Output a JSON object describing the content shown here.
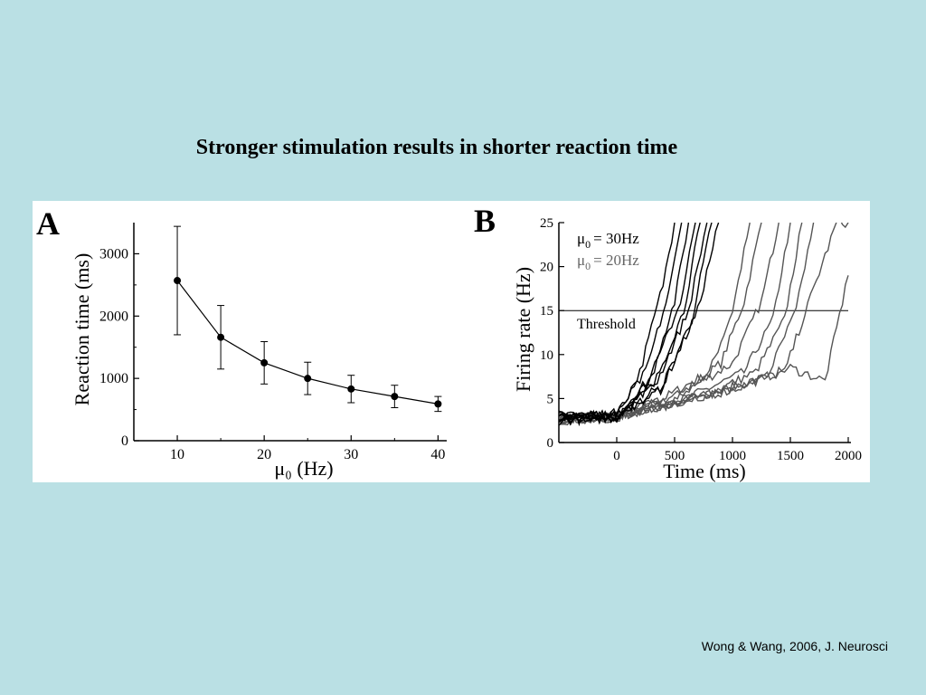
{
  "slide": {
    "title": "Stronger stimulation results in shorter reaction time",
    "citation": "Wong & Wang, 2006, J. Neurosci"
  },
  "colors": {
    "background": "#bae0e4",
    "panel": "#ffffff",
    "series_30": "#000000",
    "series_20": "#555555",
    "threshold": "#000000"
  },
  "chart_data": [
    {
      "panel_label": "A",
      "type": "line",
      "xlabel": "μ₀ (Hz)",
      "ylabel": "Reaction time (ms)",
      "x": [
        10,
        15,
        20,
        25,
        30,
        35,
        40
      ],
      "series": [
        {
          "values": [
            2570,
            1660,
            1250,
            1000,
            830,
            710,
            590
          ],
          "error": [
            870,
            510,
            340,
            260,
            220,
            180,
            120
          ]
        }
      ],
      "xlim": [
        5,
        41
      ],
      "ylim": [
        0,
        3500
      ],
      "xticks": [
        "10",
        "20",
        "30",
        "40"
      ],
      "yticks": [
        "0",
        "1000",
        "2000",
        "3000"
      ],
      "grid": false
    },
    {
      "panel_label": "B",
      "type": "line",
      "xlabel": "Time (ms)",
      "ylabel": "Firing rate (Hz)",
      "xlim": [
        -500,
        2000
      ],
      "ylim": [
        0,
        25
      ],
      "xticks": [
        "0",
        "500",
        "1000",
        "1500",
        "2000"
      ],
      "yticks": [
        "0",
        "5",
        "10",
        "15",
        "20",
        "25"
      ],
      "threshold": {
        "value": 15,
        "label": "Threshold"
      },
      "legend": {
        "placement": "top-left",
        "entries": [
          {
            "symbol": "μ",
            "sub": "0",
            "text": "= 30Hz"
          },
          {
            "symbol": "μ",
            "sub": "0",
            "text": "= 20Hz"
          }
        ]
      },
      "series": [
        {
          "group": "30Hz",
          "x": [
            -500,
            0,
            200,
            400,
            500
          ],
          "y": [
            2.7,
            3,
            8,
            18,
            25
          ]
        },
        {
          "group": "30Hz",
          "x": [
            -500,
            0,
            250,
            450,
            560
          ],
          "y": [
            3,
            3.2,
            8,
            17,
            25
          ]
        },
        {
          "group": "30Hz",
          "x": [
            -500,
            0,
            280,
            500,
            620
          ],
          "y": [
            2.5,
            2.8,
            7,
            16,
            25
          ]
        },
        {
          "group": "30Hz",
          "x": [
            -500,
            0,
            300,
            550,
            680
          ],
          "y": [
            3.1,
            3,
            7.5,
            16,
            25
          ]
        },
        {
          "group": "30Hz",
          "x": [
            -500,
            0,
            320,
            580,
            720
          ],
          "y": [
            2.8,
            2.9,
            6.5,
            15,
            25
          ]
        },
        {
          "group": "30Hz",
          "x": [
            -500,
            0,
            350,
            620,
            780
          ],
          "y": [
            3,
            3.3,
            7,
            15,
            25
          ]
        },
        {
          "group": "30Hz",
          "x": [
            -500,
            0,
            380,
            650,
            820
          ],
          "y": [
            2.6,
            3,
            6,
            14,
            25
          ]
        },
        {
          "group": "30Hz",
          "x": [
            -500,
            0,
            400,
            700,
            880
          ],
          "y": [
            3.2,
            3.1,
            6.5,
            15,
            25
          ]
        },
        {
          "group": "20Hz",
          "x": [
            -500,
            0,
            400,
            800,
            1000,
            1150
          ],
          "y": [
            2.6,
            3,
            5,
            8,
            15,
            25
          ]
        },
        {
          "group": "20Hz",
          "x": [
            -500,
            0,
            500,
            900,
            1100,
            1250
          ],
          "y": [
            2.5,
            2.8,
            5,
            9,
            16,
            25
          ]
        },
        {
          "group": "20Hz",
          "x": [
            -500,
            0,
            550,
            1000,
            1250,
            1400
          ],
          "y": [
            2.7,
            3,
            5.5,
            9,
            16,
            25
          ]
        },
        {
          "group": "20Hz",
          "x": [
            -500,
            0,
            600,
            1100,
            1350,
            1500
          ],
          "y": [
            2.5,
            2.9,
            5,
            8,
            14,
            25
          ]
        },
        {
          "group": "20Hz",
          "x": [
            -500,
            0,
            700,
            1200,
            1450,
            1600
          ],
          "y": [
            2.8,
            3,
            5,
            8,
            14,
            25
          ]
        },
        {
          "group": "20Hz",
          "x": [
            -500,
            0,
            800,
            1300,
            1550,
            1700
          ],
          "y": [
            2.6,
            2.8,
            5.5,
            7.5,
            15,
            25
          ]
        },
        {
          "group": "20Hz",
          "x": [
            -500,
            0,
            900,
            1450,
            1900,
            2000
          ],
          "y": [
            2.5,
            3,
            6,
            8,
            25,
            25
          ]
        },
        {
          "group": "20Hz",
          "x": [
            -500,
            0,
            1000,
            1500,
            1800,
            2000
          ],
          "y": [
            2.7,
            3,
            6,
            8.5,
            7,
            19
          ]
        }
      ]
    }
  ]
}
